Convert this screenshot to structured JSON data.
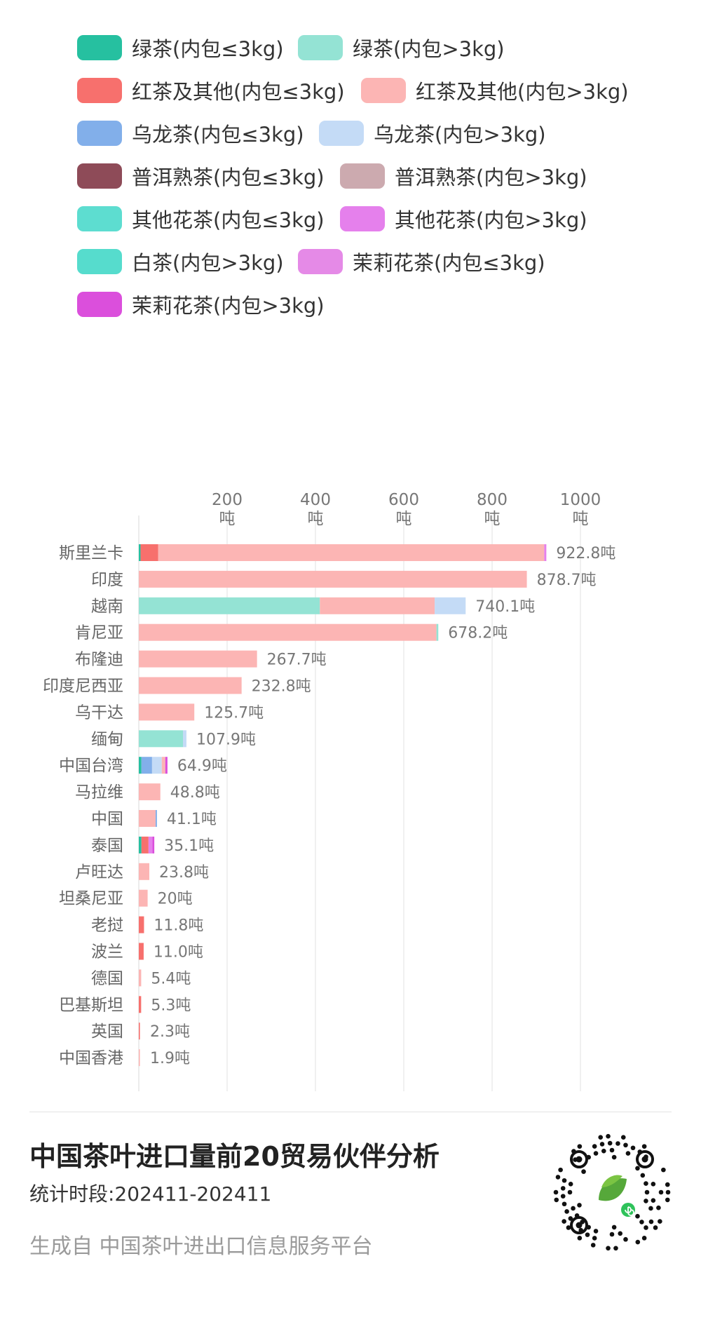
{
  "chart_data": {
    "type": "bar",
    "orientation": "horizontal",
    "stacked": true,
    "xaxis_ticks": [
      {
        "value": 200,
        "label": "200",
        "unit": "吨"
      },
      {
        "value": 400,
        "label": "400",
        "unit": "吨"
      },
      {
        "value": 600,
        "label": "600",
        "unit": "吨"
      },
      {
        "value": 800,
        "label": "800",
        "unit": "吨"
      },
      {
        "value": 1000,
        "label": "1000",
        "unit": "吨"
      }
    ],
    "xlim": [
      0,
      1000
    ],
    "grid": "vertical",
    "legend_position": "top",
    "series": [
      {
        "name": "绿茶(内包≤3kg)",
        "color": "#26c0a0"
      },
      {
        "name": "绿茶(内包>3kg)",
        "color": "#94e3d4"
      },
      {
        "name": "红茶及其他(内包≤3kg)",
        "color": "#f7706d"
      },
      {
        "name": "红茶及其他(内包>3kg)",
        "color": "#fcb5b4"
      },
      {
        "name": "乌龙茶(内包≤3kg)",
        "color": "#82afea"
      },
      {
        "name": "乌龙茶(内包>3kg)",
        "color": "#c4dbf6"
      },
      {
        "name": "普洱熟茶(内包≤3kg)",
        "color": "#8e4b58"
      },
      {
        "name": "普洱熟茶(内包>3kg)",
        "color": "#ccaaaf"
      },
      {
        "name": "其他花茶(内包≤3kg)",
        "color": "#5dddd0"
      },
      {
        "name": "其他花茶(内包>3kg)",
        "color": "#e580ec"
      },
      {
        "name": "白茶(内包>3kg)",
        "color": "#56dccd"
      },
      {
        "name": "茉莉花茶(内包≤3kg)",
        "color": "#e58ae7"
      },
      {
        "name": "茉莉花茶(内包>3kg)",
        "color": "#db4fdc"
      }
    ],
    "categories": [
      {
        "name": "斯里兰卡",
        "total": "922.8吨",
        "segments": [
          [
            0,
            4
          ],
          [
            2,
            40
          ],
          [
            3,
            874
          ],
          [
            9,
            4.8
          ]
        ]
      },
      {
        "name": "印度",
        "total": "878.7吨",
        "segments": [
          [
            3,
            878.7
          ]
        ]
      },
      {
        "name": "越南",
        "total": "740.1吨",
        "segments": [
          [
            1,
            410
          ],
          [
            3,
            260
          ],
          [
            5,
            70.1
          ]
        ]
      },
      {
        "name": "肯尼亚",
        "total": "678.2吨",
        "segments": [
          [
            3,
            674
          ],
          [
            1,
            4.2
          ]
        ]
      },
      {
        "name": "布隆迪",
        "total": "267.7吨",
        "segments": [
          [
            3,
            267.7
          ]
        ]
      },
      {
        "name": "印度尼西亚",
        "total": "232.8吨",
        "segments": [
          [
            3,
            232.8
          ]
        ]
      },
      {
        "name": "乌干达",
        "total": "125.7吨",
        "segments": [
          [
            3,
            125.7
          ]
        ]
      },
      {
        "name": "缅甸",
        "total": "107.9吨",
        "segments": [
          [
            1,
            100
          ],
          [
            5,
            7.9
          ]
        ]
      },
      {
        "name": "中国台湾",
        "total": "64.9吨",
        "segments": [
          [
            0,
            6
          ],
          [
            4,
            24
          ],
          [
            5,
            22
          ],
          [
            3,
            8
          ],
          [
            12,
            4.9
          ]
        ]
      },
      {
        "name": "马拉维",
        "total": "48.8吨",
        "segments": [
          [
            3,
            48.8
          ]
        ]
      },
      {
        "name": "中国",
        "total": "41.1吨",
        "segments": [
          [
            3,
            38
          ],
          [
            4,
            3.1
          ]
        ]
      },
      {
        "name": "泰国",
        "total": "35.1吨",
        "segments": [
          [
            0,
            6
          ],
          [
            2,
            16
          ],
          [
            9,
            9
          ],
          [
            12,
            4.1
          ]
        ]
      },
      {
        "name": "卢旺达",
        "total": "23.8吨",
        "segments": [
          [
            3,
            23.8
          ]
        ]
      },
      {
        "name": "坦桑尼亚",
        "total": "20吨",
        "segments": [
          [
            3,
            20
          ]
        ]
      },
      {
        "name": "老挝",
        "total": "11.8吨",
        "segments": [
          [
            2,
            11.8
          ]
        ]
      },
      {
        "name": "波兰",
        "total": "11.0吨",
        "segments": [
          [
            2,
            11
          ]
        ]
      },
      {
        "name": "德国",
        "total": "5.4吨",
        "segments": [
          [
            3,
            5.4
          ]
        ]
      },
      {
        "name": "巴基斯坦",
        "total": "5.3吨",
        "segments": [
          [
            2,
            5.3
          ]
        ]
      },
      {
        "name": "英国",
        "total": "2.3吨",
        "segments": [
          [
            2,
            2.3
          ]
        ]
      },
      {
        "name": "中国香港",
        "total": "1.9吨",
        "segments": [
          [
            3,
            1.9
          ]
        ]
      }
    ]
  },
  "footer": {
    "title": "中国茶叶进口量前20贸易伙伴分析",
    "period": "统计时段:202411-202411",
    "source": "生成自 中国茶叶进出口信息服务平台"
  }
}
